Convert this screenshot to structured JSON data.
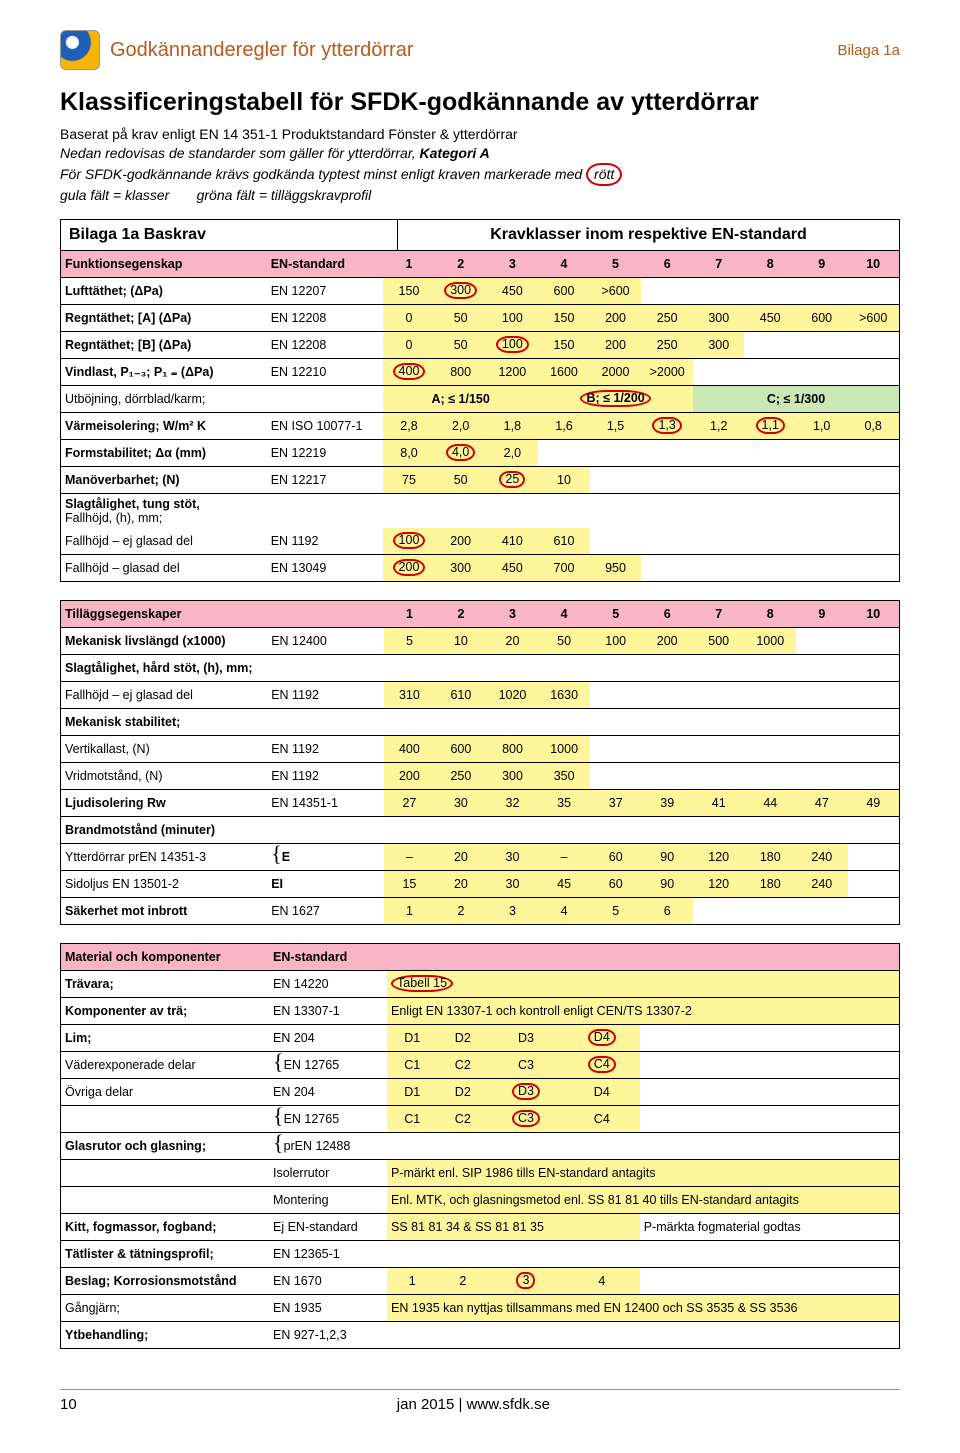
{
  "header": {
    "docTitle": "Godkännanderegler för ytterdörrar",
    "bilaga": "Bilaga 1a"
  },
  "mainTitle": "Klassificeringstabell för SFDK-godkännande av ytterdörrar",
  "intro": {
    "l1": "Baserat på krav enligt EN 14 351-1 Produktstandard Fönster & ytterdörrar",
    "l2a": "Nedan redovisas de standarder som gäller för ytterdörrar, ",
    "l2b": "Kategori A",
    "l3a": "För SFDK-godkännande krävs godkända typtest minst enligt kraven markerade med ",
    "l3b": "rött",
    "l4a": "gula fält = klasser",
    "l4b": "gröna fält = tilläggskravprofil"
  },
  "baskrav": {
    "title": "Bilaga 1a  Baskrav",
    "rightTitle": "Kravklasser inom respektive EN-standard",
    "headerRow": {
      "prop": "Funktionsegenskap",
      "std": "EN-standard",
      "cols": [
        "1",
        "2",
        "3",
        "4",
        "5",
        "6",
        "7",
        "8",
        "9",
        "10"
      ]
    },
    "rows": [
      {
        "prop": "Lufttäthet; (ΔPa)",
        "std": "EN 12207",
        "vals": [
          "150",
          "300",
          "450",
          "600",
          ">600",
          "",
          "",
          "",
          "",
          ""
        ],
        "ovals": [
          1
        ],
        "numCols": 5
      },
      {
        "prop": "Regntäthet; [A] (ΔPa)",
        "std": "EN 12208",
        "vals": [
          "0",
          "50",
          "100",
          "150",
          "200",
          "250",
          "300",
          "450",
          "600",
          ">600"
        ],
        "ovals": [],
        "numCols": 10
      },
      {
        "prop": "Regntäthet; [B] (ΔPa)",
        "std": "EN 12208",
        "vals": [
          "0",
          "50",
          "100",
          "150",
          "200",
          "250",
          "300",
          "",
          "",
          ""
        ],
        "ovals": [
          2
        ],
        "numCols": 7
      },
      {
        "prop": "Vindlast, P₁₋₃; P₁ ₌ (ΔPa)",
        "std": "EN 12210",
        "vals": [
          "400",
          "800",
          "1200",
          "1600",
          "2000",
          ">2000",
          "",
          "",
          "",
          ""
        ],
        "ovals": [
          0
        ],
        "numCols": 6
      }
    ],
    "utbojning": {
      "label": "Utböjning, dörrblad/karm;",
      "a": "A; ≤ 1/150",
      "b": "B; ≤ 1/200",
      "c": "C; ≤ 1/300",
      "ovalB": true
    },
    "rows2": [
      {
        "prop": "Värmeisolering; W/m² K",
        "std": "EN ISO 10077-1",
        "vals": [
          "2,8",
          "2,0",
          "1,8",
          "1,6",
          "1,5",
          "1,3",
          "1,2",
          "1,1",
          "1,0",
          "0,8"
        ],
        "ovals": [
          5,
          7
        ],
        "numCols": 10
      },
      {
        "prop": "Formstabilitet; Δα (mm)",
        "std": "EN 12219",
        "vals": [
          "8,0",
          "4,0",
          "2,0",
          "",
          "",
          "",
          "",
          "",
          "",
          ""
        ],
        "ovals": [
          1
        ],
        "numCols": 3
      },
      {
        "prop": "Manöverbarhet; (N)",
        "std": "EN 12217",
        "vals": [
          "75",
          "50",
          "25",
          "10",
          "",
          "",
          "",
          "",
          "",
          ""
        ],
        "ovals": [
          2
        ],
        "numCols": 4
      }
    ],
    "slag": {
      "l1": "Slagtålighet, tung stöt,",
      "l2": "Fallhöjd, (h), mm;"
    },
    "slagRows": [
      {
        "prop": "Fallhöjd – ej glasad del",
        "std": "EN 1192",
        "vals": [
          "100",
          "200",
          "410",
          "610",
          "",
          "",
          "",
          "",
          "",
          ""
        ],
        "ovals": [
          0
        ],
        "numCols": 4
      },
      {
        "prop": "Fallhöjd – glasad del",
        "std": "EN 13049",
        "vals": [
          "200",
          "300",
          "450",
          "700",
          "950",
          "",
          "",
          "",
          "",
          ""
        ],
        "ovals": [
          0
        ],
        "numCols": 5
      }
    ]
  },
  "tillag": {
    "headerRow": {
      "prop": "Tilläggsegenskaper",
      "cols": [
        "1",
        "2",
        "3",
        "4",
        "5",
        "6",
        "7",
        "8",
        "9",
        "10"
      ]
    },
    "rows": [
      {
        "prop": "Mekanisk livslängd (x1000)",
        "std": "EN 12400",
        "vals": [
          "5",
          "10",
          "20",
          "50",
          "100",
          "200",
          "500",
          "1000",
          "",
          ""
        ],
        "numCols": 8
      }
    ],
    "slagHard": {
      "label": "Slagtålighet, hård stöt, (h), mm;"
    },
    "slagHardRow": {
      "prop": " Fallhöjd – ej glasad del",
      "std": "EN 1192",
      "vals": [
        "310",
        "610",
        "1020",
        "1630",
        "",
        "",
        "",
        "",
        "",
        ""
      ],
      "numCols": 4
    },
    "mekStab": {
      "label": "Mekanisk stabilitet;"
    },
    "mekRows": [
      {
        "prop": " Vertikallast, (N)",
        "std": "EN 1192",
        "vals": [
          "400",
          "600",
          "800",
          "1000",
          "",
          "",
          "",
          "",
          "",
          ""
        ],
        "numCols": 4
      },
      {
        "prop": " Vridmotstånd, (N)",
        "std": "EN 1192",
        "vals": [
          "200",
          "250",
          "300",
          "350",
          "",
          "",
          "",
          "",
          "",
          ""
        ],
        "numCols": 4
      }
    ],
    "ljud": {
      "prop": "Ljudisolering Rw",
      "std": "EN 14351-1",
      "vals": [
        "27",
        "30",
        "32",
        "35",
        "37",
        "39",
        "41",
        "44",
        "47",
        "49"
      ],
      "numCols": 10
    },
    "brand": {
      "label": "Brandmotstånd (minuter)"
    },
    "brandRows": [
      {
        "prop": "Ytterdörrar prEN 14351-3",
        "code": "E",
        "vals": [
          "–",
          "20",
          "30",
          "–",
          "60",
          "90",
          "120",
          "180",
          "240",
          ""
        ],
        "numCols": 9
      },
      {
        "prop": "Sidoljus   EN 13501-2",
        "code": "EI",
        "vals": [
          "15",
          "20",
          "30",
          "45",
          "60",
          "90",
          "120",
          "180",
          "240",
          ""
        ],
        "numCols": 9
      }
    ],
    "sakerhet": {
      "prop": "Säkerhet mot inbrott",
      "std": "EN 1627",
      "vals": [
        "1",
        "2",
        "3",
        "4",
        "5",
        "6",
        "",
        "",
        "",
        ""
      ],
      "numCols": 6
    }
  },
  "material": {
    "header": {
      "prop": "Material och komponenter",
      "std": "EN-standard"
    },
    "travara": {
      "prop": "Trävara;",
      "std": "EN 14220",
      "note": "Tabell 15"
    },
    "komponenter": {
      "prop": "Komponenter av trä;",
      "std": "EN 13307-1",
      "note": "Enligt EN 13307-1 och kontroll enligt CEN/TS 13307-2"
    },
    "lim": {
      "prop": "Lim;",
      "std": "EN 204",
      "vals": [
        "D1",
        "D2",
        "D3",
        "D4"
      ],
      "ovals": [
        3
      ]
    },
    "vader": {
      "prop": " Väderexponerade delar",
      "std": "EN 12765",
      "vals": [
        "C1",
        "C2",
        "C3",
        "C4"
      ],
      "ovals": [
        3
      ]
    },
    "ovriga1": {
      "prop": " Övriga delar",
      "std": "EN 204",
      "vals": [
        "D1",
        "D2",
        "D3",
        "D4"
      ],
      "ovals": [
        2
      ]
    },
    "ovriga2": {
      "prop": "",
      "std": "EN  12765",
      "vals": [
        "C1",
        "C2",
        "C3",
        "C4"
      ],
      "ovals": [
        2
      ]
    },
    "glas": {
      "prop": "Glasrutor och glasning;",
      "std": "prEN 12488"
    },
    "isoler": {
      "label": "Isolerrutor",
      "note": "P-märkt enl. SIP 1986 tills EN-standard antagits"
    },
    "montering": {
      "label": "Montering",
      "note": "Enl. MTK, och glasningsmetod enl. SS 81 81 40 tills EN-standard antagits"
    },
    "kitt": {
      "prop": "Kitt, fogmassor, fogband;",
      "std": "Ej EN-standard",
      "note1": "SS 81 81 34 & SS 81 81 35",
      "note2": "P-märkta fogmaterial godtas"
    },
    "tatlister": {
      "prop": "Tätlister & tätningsprofil;",
      "std": "EN 12365-1"
    },
    "beslag": {
      "prop": "Beslag;  Korrosionsmotstånd",
      "std": "EN 1670",
      "vals": [
        "1",
        "2",
        "3",
        "4"
      ],
      "ovals": [
        2
      ]
    },
    "gangjarn": {
      "prop": "          Gångjärn;",
      "std": "EN 1935",
      "note": "EN 1935 kan nyttjas tillsammans med EN 12400 och SS 3535 & SS 3536"
    },
    "ytbehandling": {
      "prop": "Ytbehandling;",
      "std": "EN 927-1,2,3"
    }
  },
  "footer": {
    "page": "10",
    "center": "jan 2015 | www.sfdk.se"
  }
}
